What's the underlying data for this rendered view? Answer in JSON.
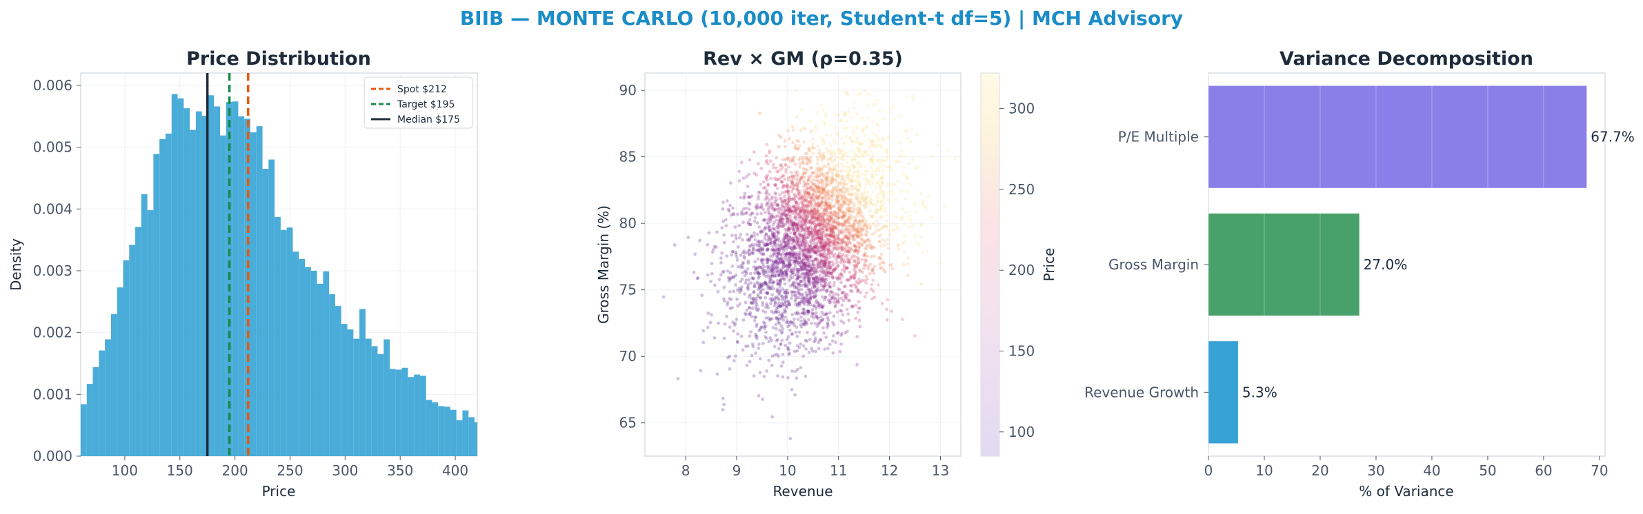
{
  "suptitle": "BIIB — MONTE CARLO (10,000 iter, Student-t df=5) | MCH Advisory",
  "colors": {
    "title": "#1a8cc8",
    "hist": "#4aacd8",
    "spot": "#e8590c",
    "target": "#148a4e",
    "median": "#1d2b3a",
    "bar_pe": "#8a7ee8",
    "bar_gm": "#48a06a",
    "bar_rev": "#36a2d6"
  },
  "chart_data": [
    {
      "type": "bar",
      "title": "Price Distribution",
      "xlabel": "Price",
      "ylabel": "Density",
      "xlim": [
        60,
        420
      ],
      "ylim": [
        0,
        0.0062
      ],
      "xticks": [
        100,
        150,
        200,
        250,
        300,
        350,
        400
      ],
      "yticks": [
        0.0,
        0.001,
        0.002,
        0.003,
        0.004,
        0.005,
        0.006
      ],
      "ytick_labels": [
        "0.000",
        "0.001",
        "0.002",
        "0.003",
        "0.004",
        "0.005",
        "0.006"
      ],
      "bin_start": 60,
      "bin_width": 5.5,
      "density": [
        0.00084,
        0.00117,
        0.00144,
        0.00171,
        0.00189,
        0.0023,
        0.00273,
        0.00317,
        0.00342,
        0.00371,
        0.00424,
        0.00398,
        0.00489,
        0.00513,
        0.00522,
        0.00586,
        0.00579,
        0.00563,
        0.00528,
        0.00558,
        0.00551,
        0.00584,
        0.00566,
        0.00519,
        0.00573,
        0.00574,
        0.0055,
        0.00546,
        0.00524,
        0.00534,
        0.00465,
        0.0048,
        0.00387,
        0.00366,
        0.0037,
        0.00331,
        0.00319,
        0.00306,
        0.003,
        0.00279,
        0.00299,
        0.00262,
        0.00243,
        0.00214,
        0.00205,
        0.0019,
        0.00238,
        0.0019,
        0.00178,
        0.00165,
        0.00189,
        0.00141,
        0.0014,
        0.00143,
        0.00128,
        0.00132,
        0.0013,
        0.00091,
        0.00087,
        0.00081,
        0.0008,
        0.00075,
        0.00058,
        0.00074,
        0.00063,
        0.00055,
        0.00043,
        0.00026,
        0.00031,
        0.0004,
        0.0003,
        0.00036,
        0.00038,
        0.00026,
        0.00041,
        0.00031,
        0.00026,
        0.00017,
        0.00025,
        0.00025,
        0.00026,
        0.00018,
        0.0002,
        0.00024
      ],
      "reference_lines": [
        {
          "label": "Spot $212",
          "value": 212,
          "style": "dashed",
          "color": "#e8590c"
        },
        {
          "label": "Target $195",
          "value": 195,
          "style": "dashed",
          "color": "#148a4e"
        },
        {
          "label": "Median $175",
          "value": 175,
          "style": "solid",
          "color": "#1d2b3a"
        }
      ],
      "legend_position": "top-right",
      "grid": true
    },
    {
      "type": "scatter",
      "title": "Rev × GM (ρ=0.35)",
      "xlabel": "Revenue",
      "ylabel": "Gross Margin (%)",
      "xlim": [
        7.2,
        13.4
      ],
      "ylim": [
        62.5,
        91.3
      ],
      "xticks": [
        8,
        9,
        10,
        11,
        12,
        13
      ],
      "yticks": [
        65,
        70,
        75,
        80,
        85,
        90
      ],
      "n_points": 10000,
      "x_mean": 10.5,
      "x_sd": 0.78,
      "y_mean": 78.9,
      "y_sd": 3.8,
      "correlation": 0.35,
      "y_max": 90,
      "colorbar": {
        "label": "Price",
        "ticks": [
          100,
          150,
          200,
          250,
          300
        ],
        "range": [
          85,
          322
        ],
        "colormap": "magma-light"
      },
      "grid": true
    },
    {
      "type": "bar",
      "orientation": "horizontal",
      "title": "Variance Decomposition",
      "xlabel": "% of Variance",
      "xlim": [
        0,
        71
      ],
      "xticks": [
        0,
        10,
        20,
        30,
        40,
        50,
        60,
        70
      ],
      "categories": [
        "P/E Multiple",
        "Gross Margin",
        "Revenue Growth"
      ],
      "values": [
        67.7,
        27.0,
        5.3
      ],
      "value_labels": [
        "67.7%",
        "27.0%",
        "5.3%"
      ],
      "bar_colors": [
        "#8a7ee8",
        "#48a06a",
        "#36a2d6"
      ],
      "grid": true
    }
  ]
}
